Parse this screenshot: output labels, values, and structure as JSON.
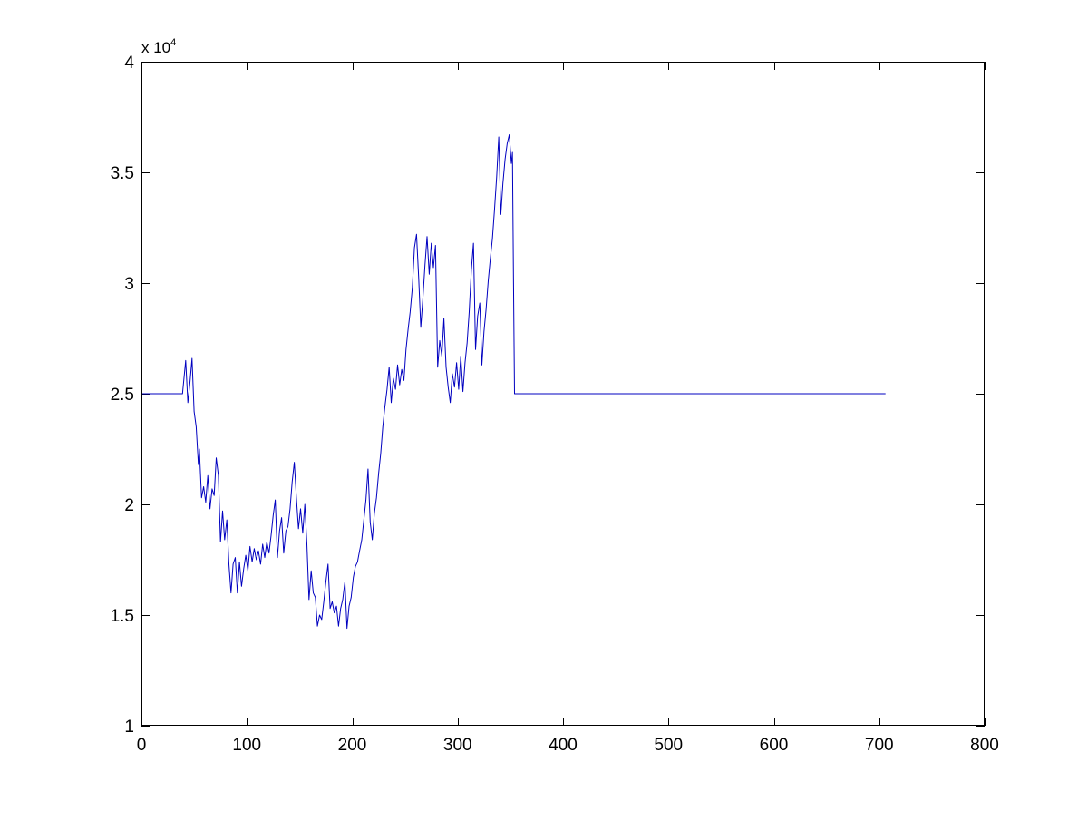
{
  "chart_data": {
    "type": "line",
    "title": "",
    "xlabel": "",
    "ylabel": "",
    "xlim": [
      0,
      800
    ],
    "ylim": [
      10000,
      40000
    ],
    "x_ticks": [
      0,
      100,
      200,
      300,
      400,
      500,
      600,
      700,
      800
    ],
    "y_ticks": [
      10000,
      15000,
      20000,
      25000,
      30000,
      35000,
      40000
    ],
    "x_tick_labels": [
      "0",
      "100",
      "200",
      "300",
      "400",
      "500",
      "600",
      "700",
      "800"
    ],
    "y_tick_labels": [
      "1",
      "1.5",
      "2",
      "2.5",
      "3",
      "3.5",
      "4"
    ],
    "y_exponent_text": "x 10",
    "y_exponent_power": "4",
    "grid": false,
    "series": [
      {
        "color": "#0000c0",
        "points": [
          [
            0,
            25000
          ],
          [
            39,
            25000
          ],
          [
            42,
            26500
          ],
          [
            44,
            24600
          ],
          [
            46,
            25500
          ],
          [
            48,
            26600
          ],
          [
            50,
            24200
          ],
          [
            52,
            23500
          ],
          [
            54,
            21800
          ],
          [
            55,
            22500
          ],
          [
            57,
            20300
          ],
          [
            59,
            20800
          ],
          [
            61,
            20100
          ],
          [
            63,
            21300
          ],
          [
            65,
            19800
          ],
          [
            67,
            20700
          ],
          [
            69,
            20400
          ],
          [
            71,
            22100
          ],
          [
            73,
            21300
          ],
          [
            75,
            18300
          ],
          [
            77,
            19700
          ],
          [
            79,
            18400
          ],
          [
            81,
            19300
          ],
          [
            83,
            17300
          ],
          [
            85,
            16000
          ],
          [
            87,
            17300
          ],
          [
            89,
            17600
          ],
          [
            91,
            16000
          ],
          [
            93,
            17400
          ],
          [
            95,
            16300
          ],
          [
            97,
            17100
          ],
          [
            99,
            17700
          ],
          [
            101,
            17000
          ],
          [
            103,
            18100
          ],
          [
            105,
            17400
          ],
          [
            107,
            18000
          ],
          [
            109,
            17500
          ],
          [
            111,
            17900
          ],
          [
            113,
            17300
          ],
          [
            115,
            18200
          ],
          [
            117,
            17600
          ],
          [
            119,
            18300
          ],
          [
            121,
            17800
          ],
          [
            123,
            18600
          ],
          [
            125,
            19500
          ],
          [
            127,
            20200
          ],
          [
            129,
            17600
          ],
          [
            131,
            18800
          ],
          [
            133,
            19400
          ],
          [
            135,
            17800
          ],
          [
            137,
            18800
          ],
          [
            139,
            19000
          ],
          [
            141,
            19800
          ],
          [
            143,
            21000
          ],
          [
            145,
            21900
          ],
          [
            147,
            20300
          ],
          [
            149,
            18900
          ],
          [
            151,
            19800
          ],
          [
            153,
            18700
          ],
          [
            155,
            20000
          ],
          [
            157,
            18200
          ],
          [
            159,
            15700
          ],
          [
            161,
            17000
          ],
          [
            163,
            16000
          ],
          [
            165,
            15800
          ],
          [
            167,
            14500
          ],
          [
            169,
            15000
          ],
          [
            171,
            14800
          ],
          [
            173,
            15600
          ],
          [
            175,
            16500
          ],
          [
            177,
            17300
          ],
          [
            179,
            15300
          ],
          [
            181,
            15600
          ],
          [
            183,
            15100
          ],
          [
            185,
            15400
          ],
          [
            187,
            14500
          ],
          [
            189,
            15300
          ],
          [
            191,
            15700
          ],
          [
            193,
            16500
          ],
          [
            195,
            14400
          ],
          [
            197,
            15400
          ],
          [
            199,
            15800
          ],
          [
            201,
            16700
          ],
          [
            203,
            17200
          ],
          [
            205,
            17400
          ],
          [
            207,
            17900
          ],
          [
            209,
            18400
          ],
          [
            211,
            19300
          ],
          [
            213,
            20200
          ],
          [
            215,
            21600
          ],
          [
            217,
            19200
          ],
          [
            219,
            18400
          ],
          [
            221,
            19600
          ],
          [
            223,
            20300
          ],
          [
            225,
            21400
          ],
          [
            227,
            22300
          ],
          [
            229,
            23500
          ],
          [
            231,
            24400
          ],
          [
            233,
            25200
          ],
          [
            235,
            26200
          ],
          [
            237,
            24600
          ],
          [
            239,
            25700
          ],
          [
            241,
            25200
          ],
          [
            243,
            26300
          ],
          [
            245,
            25400
          ],
          [
            247,
            26100
          ],
          [
            249,
            25600
          ],
          [
            251,
            27000
          ],
          [
            253,
            27900
          ],
          [
            255,
            28700
          ],
          [
            257,
            29800
          ],
          [
            259,
            31600
          ],
          [
            261,
            32200
          ],
          [
            263,
            30300
          ],
          [
            265,
            28000
          ],
          [
            267,
            29300
          ],
          [
            269,
            30800
          ],
          [
            271,
            32100
          ],
          [
            273,
            30400
          ],
          [
            275,
            31800
          ],
          [
            277,
            30700
          ],
          [
            279,
            31700
          ],
          [
            281,
            26200
          ],
          [
            283,
            27400
          ],
          [
            285,
            26700
          ],
          [
            287,
            28400
          ],
          [
            289,
            26200
          ],
          [
            291,
            25300
          ],
          [
            293,
            24600
          ],
          [
            295,
            25900
          ],
          [
            297,
            25300
          ],
          [
            299,
            26400
          ],
          [
            301,
            25200
          ],
          [
            303,
            26700
          ],
          [
            305,
            25100
          ],
          [
            307,
            26400
          ],
          [
            309,
            27300
          ],
          [
            311,
            28700
          ],
          [
            313,
            30600
          ],
          [
            315,
            31800
          ],
          [
            317,
            27000
          ],
          [
            319,
            28500
          ],
          [
            321,
            29100
          ],
          [
            323,
            26300
          ],
          [
            325,
            27800
          ],
          [
            327,
            28800
          ],
          [
            329,
            30100
          ],
          [
            331,
            31100
          ],
          [
            333,
            32000
          ],
          [
            335,
            33300
          ],
          [
            337,
            34800
          ],
          [
            339,
            36600
          ],
          [
            341,
            33100
          ],
          [
            343,
            34500
          ],
          [
            345,
            35600
          ],
          [
            347,
            36300
          ],
          [
            349,
            36700
          ],
          [
            351,
            35400
          ],
          [
            352,
            35900
          ],
          [
            353,
            30000
          ],
          [
            354,
            25000
          ],
          [
            706,
            25000
          ]
        ]
      }
    ]
  }
}
